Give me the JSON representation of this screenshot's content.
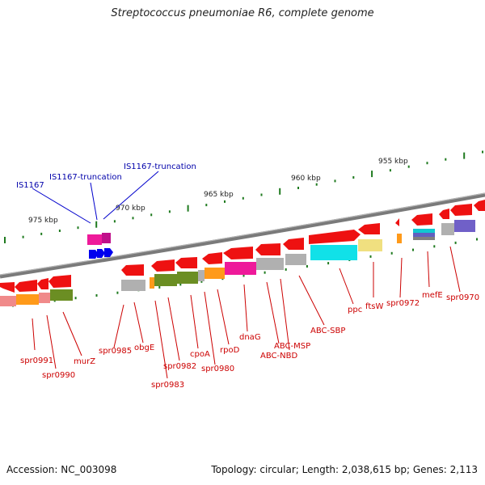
{
  "title": "Streptococcus pneumoniae R6, complete genome",
  "footer": {
    "accession": "Accession: NC_003098",
    "summary": "Topology: circular; Length: 2,038,615 bp; Genes: 2,113"
  },
  "ticks": [
    "955 kbp",
    "960 kbp",
    "965 kbp",
    "970 kbp",
    "975 kbp"
  ],
  "repeat_labels": [
    "IS1167",
    "IS1167-truncation",
    "IS1167-truncation"
  ],
  "gene_labels": [
    "spr0991",
    "spr0990",
    "murZ",
    "spr0985",
    "obgE",
    "spr0983",
    "spr0982",
    "cpoA",
    "spr0980",
    "rpoD",
    "dnaG",
    "ABC-MSP",
    "ABC-NBD",
    "ABC-SBP",
    "ppc",
    "ftsW",
    "spr0972",
    "mefE",
    "spr0970"
  ],
  "colors": {
    "gene": "#ee1111",
    "repeat_label": "#0000aa",
    "repeat_feature": "#0000ee",
    "gene_label": "#cc0000",
    "tick": "#1f7a1f",
    "backbone": "#808080"
  }
}
